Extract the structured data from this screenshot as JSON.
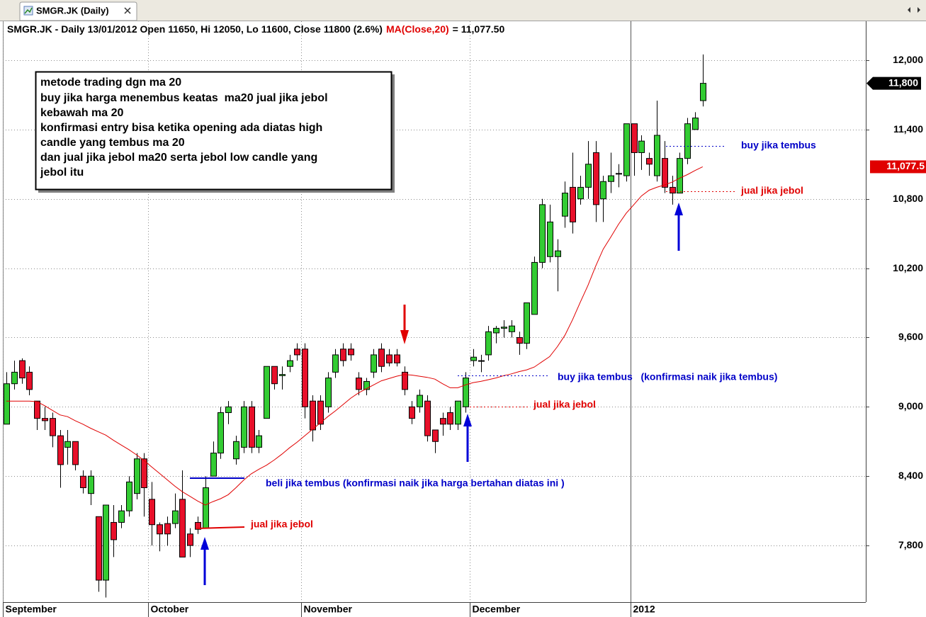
{
  "window": {
    "tab": "SMGR.JK (Daily)"
  },
  "chart_data": {
    "type": "candlestick",
    "title": "SMGR.JK - Daily 13/01/2012 Open 11650, Hi 12050, Lo 11600, Close 11800 (2.6%)",
    "ma_value_label": "= 11,077.50",
    "categories": [
      "September",
      null,
      null,
      null,
      null,
      null,
      null,
      null,
      null,
      null,
      null,
      null,
      null,
      null,
      null,
      null,
      null,
      null,
      null,
      "October",
      null,
      null,
      null,
      null,
      null,
      null,
      null,
      null,
      null,
      null,
      null,
      null,
      null,
      null,
      null,
      null,
      null,
      null,
      null,
      "November",
      null,
      null,
      null,
      null,
      null,
      null,
      null,
      null,
      null,
      null,
      null,
      null,
      null,
      null,
      null,
      null,
      null,
      null,
      null,
      null,
      null,
      "December",
      null,
      null,
      null,
      null,
      null,
      null,
      null,
      null,
      null,
      null,
      null,
      null,
      null,
      null,
      null,
      null,
      null,
      null,
      null,
      null,
      "2012",
      null,
      null,
      null,
      null,
      null,
      null,
      null,
      null,
      null
    ],
    "open": [
      8850,
      9200,
      9400,
      9300,
      9050,
      8900,
      8900,
      8750,
      8650,
      8700,
      8400,
      8250,
      8050,
      7500,
      8000,
      8000,
      8100,
      8250,
      8550,
      8200,
      7980,
      7990,
      7990,
      8200,
      7900,
      8000,
      7950,
      8400,
      8600,
      8950,
      8550,
      8650,
      9000,
      8650,
      8900,
      9350,
      9270,
      9350,
      9500,
      9500,
      9050,
      9050,
      9000,
      9300,
      9500,
      9500,
      9250,
      9150,
      9300,
      9500,
      9450,
      9450,
      9300,
      9000,
      9000,
      9050,
      8800,
      8900,
      8950,
      8850,
      9000,
      9400,
      9400,
      9450,
      9640,
      9680,
      9650,
      9600,
      9550,
      9800,
      10250,
      10300,
      10300,
      10650,
      10900,
      10800,
      10900,
      11200,
      10800,
      10950,
      11020,
      11000,
      11450,
      11200,
      11150,
      11000,
      11150,
      10900,
      10850,
      11150,
      11400,
      11650
    ],
    "high": [
      9300,
      9400,
      9420,
      9350,
      9050,
      9000,
      8950,
      8800,
      8800,
      8700,
      8450,
      8450,
      8050,
      8150,
      8150,
      8150,
      8400,
      8600,
      8600,
      8350,
      8000,
      8050,
      8250,
      8450,
      7950,
      8050,
      8400,
      8700,
      9000,
      9050,
      8750,
      9050,
      9050,
      8800,
      9350,
      9350,
      9350,
      9450,
      9550,
      9550,
      9100,
      9100,
      9300,
      9500,
      9550,
      9550,
      9300,
      9250,
      9500,
      9550,
      9500,
      9500,
      9350,
      9050,
      9150,
      9100,
      8800,
      8950,
      9000,
      9050,
      9300,
      9500,
      9450,
      9700,
      9700,
      9750,
      9750,
      9650,
      9900,
      10300,
      10800,
      10750,
      10450,
      10950,
      11200,
      11000,
      11300,
      11300,
      11000,
      11200,
      11100,
      11450,
      11450,
      11350,
      11200,
      11650,
      11300,
      11000,
      11200,
      11500,
      11550,
      12050
    ],
    "low": [
      8850,
      9150,
      9200,
      9100,
      8800,
      8800,
      8650,
      8300,
      8500,
      8450,
      8250,
      8150,
      7400,
      7350,
      7700,
      7950,
      8050,
      8200,
      8050,
      7800,
      7750,
      7800,
      7950,
      7700,
      7700,
      7900,
      7950,
      8400,
      8550,
      8850,
      8500,
      8600,
      8600,
      8600,
      8900,
      9150,
      9150,
      9300,
      9400,
      8900,
      8700,
      8800,
      8950,
      9250,
      9350,
      9400,
      9100,
      9100,
      9250,
      9300,
      9350,
      9350,
      9100,
      8850,
      8950,
      8700,
      8600,
      8750,
      8800,
      8800,
      8950,
      9350,
      9300,
      9400,
      9550,
      9600,
      9600,
      9450,
      9500,
      9800,
      10200,
      10250,
      10000,
      10550,
      10500,
      10750,
      10800,
      10600,
      10600,
      10850,
      10900,
      10950,
      11000,
      11050,
      11000,
      10950,
      10850,
      10750,
      10850,
      11100,
      11400,
      11600
    ],
    "close": [
      9200,
      9300,
      9250,
      9150,
      8900,
      8880,
      8750,
      8500,
      8700,
      8500,
      8300,
      8400,
      7500,
      8150,
      7850,
      8100,
      8350,
      8550,
      8300,
      7980,
      7900,
      7900,
      8100,
      7700,
      7800,
      7940,
      8300,
      8600,
      8950,
      9000,
      8700,
      9000,
      8650,
      8750,
      9350,
      9200,
      9280,
      9400,
      9450,
      9000,
      8800,
      8850,
      9250,
      9450,
      9400,
      9450,
      9150,
      9220,
      9450,
      9350,
      9380,
      9380,
      9150,
      8900,
      9100,
      8750,
      8700,
      8850,
      8850,
      9050,
      9250,
      9430,
      9400,
      9650,
      9680,
      9690,
      9700,
      9550,
      9900,
      10250,
      10750,
      10600,
      10350,
      10850,
      10600,
      10900,
      11100,
      10750,
      10950,
      11000,
      11020,
      11450,
      11200,
      11300,
      11100,
      11350,
      10900,
      10850,
      11150,
      11450,
      11500,
      11800
    ],
    "up_color": "#33cc33",
    "down_color": "#e8102a",
    "ma": {
      "name": "MA(Close,20)",
      "color": "#e00000",
      "values": [
        9050,
        9050,
        9050,
        9050,
        9045,
        9010,
        8970,
        8930,
        8915,
        8880,
        8850,
        8815,
        8785,
        8755,
        8710,
        8670,
        8630,
        8585,
        8535,
        8480,
        8425,
        8370,
        8315,
        8265,
        8225,
        8185,
        8150,
        8180,
        8205,
        8240,
        8300,
        8365,
        8420,
        8460,
        8495,
        8540,
        8590,
        8645,
        8695,
        8750,
        8805,
        8860,
        8915,
        8965,
        9020,
        9075,
        9120,
        9155,
        9190,
        9225,
        9245,
        9265,
        9280,
        9275,
        9265,
        9255,
        9240,
        9200,
        9165,
        9165,
        9190,
        9210,
        9220,
        9235,
        9250,
        9270,
        9285,
        9305,
        9320,
        9345,
        9390,
        9435,
        9520,
        9620,
        9755,
        9905,
        10050,
        10215,
        10365,
        10470,
        10580,
        10675,
        10750,
        10825,
        10875,
        10900,
        10920,
        10945,
        10980,
        11010,
        11045,
        11077.5
      ]
    },
    "last_price": {
      "value": 11800,
      "label": "11,800"
    },
    "ma_last": {
      "value": 11077.5,
      "label": "11,077.5"
    },
    "ylim": [
      7310,
      12337
    ],
    "yticks": [
      {
        "value": 7800,
        "label": "7,800"
      },
      {
        "value": 8400,
        "label": "8,400"
      },
      {
        "value": 9000,
        "label": "9,000"
      },
      {
        "value": 9600,
        "label": "9,600"
      },
      {
        "value": 10200,
        "label": "10,200"
      },
      {
        "value": 10800,
        "label": "10,800"
      },
      {
        "value": 11400,
        "label": "11,400"
      },
      {
        "value": 12000,
        "label": "12,000"
      }
    ],
    "grid": true,
    "note": [
      "metode trading dgn ma 20",
      "buy jika harga menembus keatas  ma20 jual jika jebol",
      "kebawah ma 20",
      "konfirmasi entry bisa ketika opening ada diatas high",
      "candle yang tembus ma 20",
      "dan jual jika jebol ma20 serta jebol low candle yang",
      "jebol itu"
    ],
    "annotations": [
      "buy jika tembus",
      "jual jika jebol",
      "buy jika tembus   (konfirmasi naik jika tembus)",
      "jual jika jebol",
      "beli jika tembus (konfirmasi naik jika harga bertahan diatas ini )",
      "jual jika jebol"
    ]
  }
}
